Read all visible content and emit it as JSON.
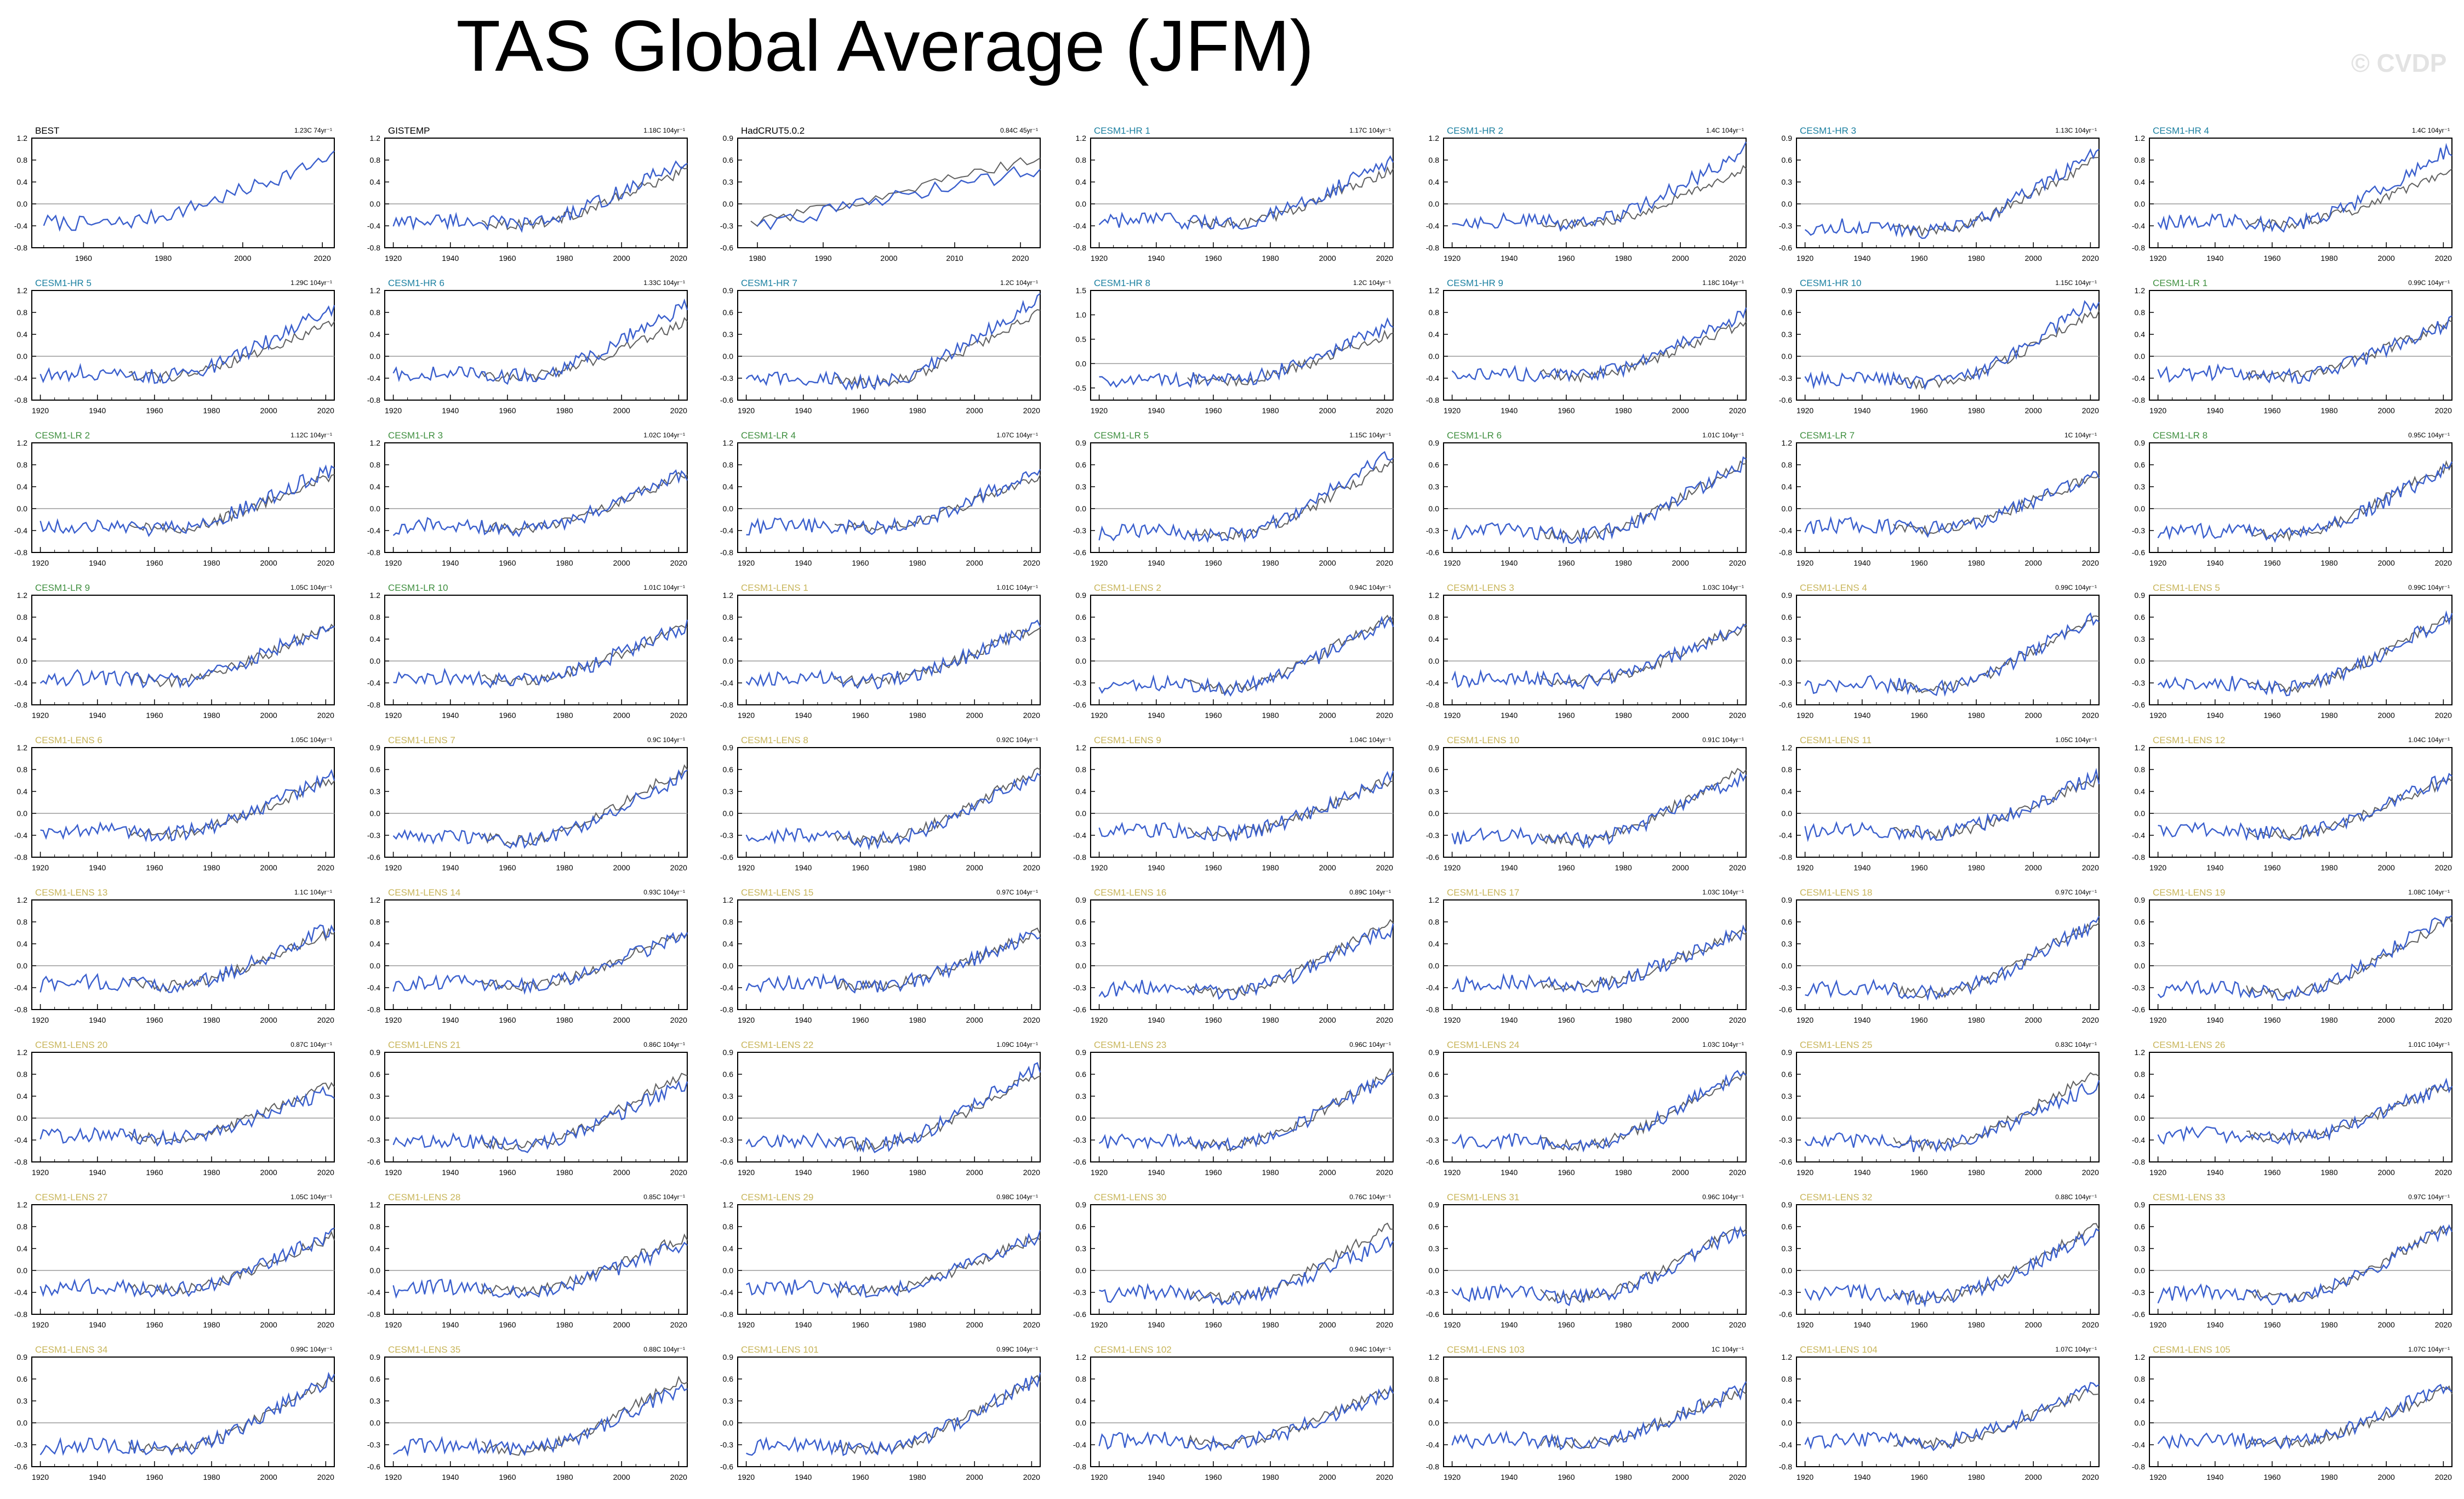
{
  "title": "TAS Global Average (JFM)",
  "watermark": "© CVDP",
  "colors": {
    "model": "#3a5fcd",
    "obs": "#606060",
    "ref": "#9a9a9a",
    "obs_title": "#000000",
    "hr_title": "#1a7fa0",
    "lr_title": "#3f8f3f",
    "lens_title": "#c8b55a"
  },
  "chart_data": {
    "type": "line",
    "xlabel": "",
    "ylabel": "",
    "panels": [
      {
        "name": "BEST",
        "group": "obs",
        "trend": "1.23C 74yr⁻¹",
        "xlim": [
          1947,
          2023
        ],
        "xticks": [
          1960,
          1980,
          2000,
          2020
        ],
        "yticks": [
          "1.2",
          "0.8",
          "0.4",
          "0.0",
          "-0.4",
          "-0.8"
        ],
        "ylim": [
          -0.8,
          1.2
        ]
      },
      {
        "name": "GISTEMP",
        "group": "obs",
        "trend": "1.18C 104yr⁻¹",
        "xlim": [
          1917,
          2023
        ],
        "xticks": [
          1920,
          1940,
          1960,
          1980,
          2000,
          2020
        ],
        "yticks": [
          "1.2",
          "0.8",
          "0.4",
          "0.0",
          "-0.4",
          "-0.8"
        ],
        "ylim": [
          -0.8,
          1.2
        ]
      },
      {
        "name": "HadCRUT5.0.2",
        "group": "obs",
        "trend": "0.84C 45yr⁻¹",
        "xlim": [
          1977,
          2023
        ],
        "xticks": [
          1980,
          1990,
          2000,
          2010,
          2020
        ],
        "yticks": [
          "0.9",
          "0.6",
          "0.3",
          "0.0",
          "-0.3",
          "-0.6"
        ],
        "ylim": [
          -0.6,
          0.9
        ]
      },
      {
        "name": "CESM1-HR 1",
        "group": "hr",
        "trend": "1.17C 104yr⁻¹",
        "yticks": [
          "1.2",
          "0.8",
          "0.4",
          "0.0",
          "-0.4",
          "-0.8"
        ],
        "ylim": [
          -0.8,
          1.2
        ]
      },
      {
        "name": "CESM1-HR 2",
        "group": "hr",
        "trend": "1.4C 104yr⁻¹",
        "yticks": [
          "1.2",
          "0.8",
          "0.4",
          "0.0",
          "-0.4",
          "-0.8"
        ],
        "ylim": [
          -0.8,
          1.2
        ]
      },
      {
        "name": "CESM1-HR 3",
        "group": "hr",
        "trend": "1.13C 104yr⁻¹",
        "yticks": [
          "0.9",
          "0.6",
          "0.3",
          "0.0",
          "-0.3",
          "-0.6"
        ],
        "ylim": [
          -0.6,
          0.9
        ]
      },
      {
        "name": "CESM1-HR 4",
        "group": "hr",
        "trend": "1.4C 104yr⁻¹",
        "yticks": [
          "1.2",
          "0.8",
          "0.4",
          "0.0",
          "-0.4",
          "-0.8"
        ],
        "ylim": [
          -0.8,
          1.2
        ]
      },
      {
        "name": "CESM1-HR 5",
        "group": "hr",
        "trend": "1.29C 104yr⁻¹",
        "yticks": [
          "1.2",
          "0.8",
          "0.4",
          "0.0",
          "-0.4",
          "-0.8"
        ],
        "ylim": [
          -0.8,
          1.2
        ]
      },
      {
        "name": "CESM1-HR 6",
        "group": "hr",
        "trend": "1.33C 104yr⁻¹",
        "yticks": [
          "1.2",
          "0.8",
          "0.4",
          "0.0",
          "-0.4",
          "-0.8"
        ],
        "ylim": [
          -0.8,
          1.2
        ]
      },
      {
        "name": "CESM1-HR 7",
        "group": "hr",
        "trend": "1.2C 104yr⁻¹",
        "yticks": [
          "0.9",
          "0.6",
          "0.3",
          "0.0",
          "-0.3",
          "-0.6"
        ],
        "ylim": [
          -0.6,
          0.9
        ]
      },
      {
        "name": "CESM1-HR 8",
        "group": "hr",
        "trend": "1.2C 104yr⁻¹",
        "yticks": [
          "1.5",
          "1.0",
          "0.5",
          "0.0",
          "-0.5"
        ],
        "ylim": [
          -0.75,
          1.5
        ]
      },
      {
        "name": "CESM1-HR 9",
        "group": "hr",
        "trend": "1.18C 104yr⁻¹",
        "yticks": [
          "1.2",
          "0.8",
          "0.4",
          "0.0",
          "-0.4",
          "-0.8"
        ],
        "ylim": [
          -0.8,
          1.2
        ]
      },
      {
        "name": "CESM1-HR 10",
        "group": "hr",
        "trend": "1.15C 104yr⁻¹",
        "yticks": [
          "0.9",
          "0.6",
          "0.3",
          "0.0",
          "-0.3",
          "-0.6"
        ],
        "ylim": [
          -0.6,
          0.9
        ]
      },
      {
        "name": "CESM1-LR 1",
        "group": "lr",
        "trend": "0.99C 104yr⁻¹",
        "yticks": [
          "1.2",
          "0.8",
          "0.4",
          "0.0",
          "-0.4",
          "-0.8"
        ],
        "ylim": [
          -0.8,
          1.2
        ]
      },
      {
        "name": "CESM1-LR 2",
        "group": "lr",
        "trend": "1.12C 104yr⁻¹",
        "yticks": [
          "1.2",
          "0.8",
          "0.4",
          "0.0",
          "-0.4",
          "-0.8"
        ],
        "ylim": [
          -0.8,
          1.2
        ]
      },
      {
        "name": "CESM1-LR 3",
        "group": "lr",
        "trend": "1.02C 104yr⁻¹",
        "yticks": [
          "1.2",
          "0.8",
          "0.4",
          "0.0",
          "-0.4",
          "-0.8"
        ],
        "ylim": [
          -0.8,
          1.2
        ]
      },
      {
        "name": "CESM1-LR 4",
        "group": "lr",
        "trend": "1.07C 104yr⁻¹",
        "yticks": [
          "1.2",
          "0.8",
          "0.4",
          "0.0",
          "-0.4",
          "-0.8"
        ],
        "ylim": [
          -0.8,
          1.2
        ]
      },
      {
        "name": "CESM1-LR 5",
        "group": "lr",
        "trend": "1.15C 104yr⁻¹",
        "yticks": [
          "0.9",
          "0.6",
          "0.3",
          "0.0",
          "-0.3",
          "-0.6"
        ],
        "ylim": [
          -0.6,
          0.9
        ]
      },
      {
        "name": "CESM1-LR 6",
        "group": "lr",
        "trend": "1.01C 104yr⁻¹",
        "yticks": [
          "0.9",
          "0.6",
          "0.3",
          "0.0",
          "-0.3",
          "-0.6"
        ],
        "ylim": [
          -0.6,
          0.9
        ]
      },
      {
        "name": "CESM1-LR 7",
        "group": "lr",
        "trend": "1C 104yr⁻¹",
        "yticks": [
          "1.2",
          "0.8",
          "0.4",
          "0.0",
          "-0.4",
          "-0.8"
        ],
        "ylim": [
          -0.8,
          1.2
        ]
      },
      {
        "name": "CESM1-LR 8",
        "group": "lr",
        "trend": "0.95C 104yr⁻¹",
        "yticks": [
          "0.9",
          "0.6",
          "0.3",
          "0.0",
          "-0.3",
          "-0.6"
        ],
        "ylim": [
          -0.6,
          0.9
        ]
      },
      {
        "name": "CESM1-LR 9",
        "group": "lr",
        "trend": "1.05C 104yr⁻¹",
        "yticks": [
          "1.2",
          "0.8",
          "0.4",
          "0.0",
          "-0.4",
          "-0.8"
        ],
        "ylim": [
          -0.8,
          1.2
        ]
      },
      {
        "name": "CESM1-LR 10",
        "group": "lr",
        "trend": "1.01C 104yr⁻¹",
        "yticks": [
          "1.2",
          "0.8",
          "0.4",
          "0.0",
          "-0.4",
          "-0.8"
        ],
        "ylim": [
          -0.8,
          1.2
        ]
      },
      {
        "name": "CESM1-LENS 1",
        "group": "lens",
        "trend": "1.01C 104yr⁻¹",
        "yticks": [
          "1.2",
          "0.8",
          "0.4",
          "0.0",
          "-0.4",
          "-0.8"
        ],
        "ylim": [
          -0.8,
          1.2
        ]
      },
      {
        "name": "CESM1-LENS 2",
        "group": "lens",
        "trend": "0.94C 104yr⁻¹",
        "yticks": [
          "0.9",
          "0.6",
          "0.3",
          "0.0",
          "-0.3",
          "-0.6"
        ],
        "ylim": [
          -0.6,
          0.9
        ]
      },
      {
        "name": "CESM1-LENS 3",
        "group": "lens",
        "trend": "1.03C 104yr⁻¹",
        "yticks": [
          "1.2",
          "0.8",
          "0.4",
          "0.0",
          "-0.4",
          "-0.8"
        ],
        "ylim": [
          -0.8,
          1.2
        ]
      },
      {
        "name": "CESM1-LENS 4",
        "group": "lens",
        "trend": "0.99C 104yr⁻¹",
        "yticks": [
          "0.9",
          "0.6",
          "0.3",
          "0.0",
          "-0.3",
          "-0.6"
        ],
        "ylim": [
          -0.6,
          0.9
        ]
      },
      {
        "name": "CESM1-LENS 5",
        "group": "lens",
        "trend": "0.99C 104yr⁻¹",
        "yticks": [
          "0.9",
          "0.6",
          "0.3",
          "0.0",
          "-0.3",
          "-0.6"
        ],
        "ylim": [
          -0.6,
          0.9
        ]
      },
      {
        "name": "CESM1-LENS 6",
        "group": "lens",
        "trend": "1.05C 104yr⁻¹",
        "yticks": [
          "1.2",
          "0.8",
          "0.4",
          "0.0",
          "-0.4",
          "-0.8"
        ],
        "ylim": [
          -0.8,
          1.2
        ]
      },
      {
        "name": "CESM1-LENS 7",
        "group": "lens",
        "trend": "0.9C 104yr⁻¹",
        "yticks": [
          "0.9",
          "0.6",
          "0.3",
          "0.0",
          "-0.3",
          "-0.6"
        ],
        "ylim": [
          -0.6,
          0.9
        ]
      },
      {
        "name": "CESM1-LENS 8",
        "group": "lens",
        "trend": "0.92C 104yr⁻¹",
        "yticks": [
          "0.9",
          "0.6",
          "0.3",
          "0.0",
          "-0.3",
          "-0.6"
        ],
        "ylim": [
          -0.6,
          0.9
        ]
      },
      {
        "name": "CESM1-LENS 9",
        "group": "lens",
        "trend": "1.04C 104yr⁻¹",
        "yticks": [
          "1.2",
          "0.8",
          "0.4",
          "0.0",
          "-0.4",
          "-0.8"
        ],
        "ylim": [
          -0.8,
          1.2
        ]
      },
      {
        "name": "CESM1-LENS 10",
        "group": "lens",
        "trend": "0.91C 104yr⁻¹",
        "yticks": [
          "0.9",
          "0.6",
          "0.3",
          "0.0",
          "-0.3",
          "-0.6"
        ],
        "ylim": [
          -0.6,
          0.9
        ]
      },
      {
        "name": "CESM1-LENS 11",
        "group": "lens",
        "trend": "1.05C 104yr⁻¹",
        "yticks": [
          "1.2",
          "0.8",
          "0.4",
          "0.0",
          "-0.4",
          "-0.8"
        ],
        "ylim": [
          -0.8,
          1.2
        ]
      },
      {
        "name": "CESM1-LENS 12",
        "group": "lens",
        "trend": "1.04C 104yr⁻¹",
        "yticks": [
          "1.2",
          "0.8",
          "0.4",
          "0.0",
          "-0.4",
          "-0.8"
        ],
        "ylim": [
          -0.8,
          1.2
        ]
      },
      {
        "name": "CESM1-LENS 13",
        "group": "lens",
        "trend": "1.1C 104yr⁻¹",
        "yticks": [
          "1.2",
          "0.8",
          "0.4",
          "0.0",
          "-0.4",
          "-0.8"
        ],
        "ylim": [
          -0.8,
          1.2
        ]
      },
      {
        "name": "CESM1-LENS 14",
        "group": "lens",
        "trend": "0.93C 104yr⁻¹",
        "yticks": [
          "1.2",
          "0.8",
          "0.4",
          "0.0",
          "-0.4",
          "-0.8"
        ],
        "ylim": [
          -0.8,
          1.2
        ]
      },
      {
        "name": "CESM1-LENS 15",
        "group": "lens",
        "trend": "0.97C 104yr⁻¹",
        "yticks": [
          "1.2",
          "0.8",
          "0.4",
          "0.0",
          "-0.4",
          "-0.8"
        ],
        "ylim": [
          -0.8,
          1.2
        ]
      },
      {
        "name": "CESM1-LENS 16",
        "group": "lens",
        "trend": "0.89C 104yr⁻¹",
        "yticks": [
          "0.9",
          "0.6",
          "0.3",
          "0.0",
          "-0.3",
          "-0.6"
        ],
        "ylim": [
          -0.6,
          0.9
        ]
      },
      {
        "name": "CESM1-LENS 17",
        "group": "lens",
        "trend": "1.03C 104yr⁻¹",
        "yticks": [
          "1.2",
          "0.8",
          "0.4",
          "0.0",
          "-0.4",
          "-0.8"
        ],
        "ylim": [
          -0.8,
          1.2
        ]
      },
      {
        "name": "CESM1-LENS 18",
        "group": "lens",
        "trend": "0.97C 104yr⁻¹",
        "yticks": [
          "0.9",
          "0.6",
          "0.3",
          "0.0",
          "-0.3",
          "-0.6"
        ],
        "ylim": [
          -0.6,
          0.9
        ]
      },
      {
        "name": "CESM1-LENS 19",
        "group": "lens",
        "trend": "1.08C 104yr⁻¹",
        "yticks": [
          "0.9",
          "0.6",
          "0.3",
          "0.0",
          "-0.3",
          "-0.6"
        ],
        "ylim": [
          -0.6,
          0.9
        ]
      },
      {
        "name": "CESM1-LENS 20",
        "group": "lens",
        "trend": "0.87C 104yr⁻¹",
        "yticks": [
          "1.2",
          "0.8",
          "0.4",
          "0.0",
          "-0.4",
          "-0.8"
        ],
        "ylim": [
          -0.8,
          1.2
        ]
      },
      {
        "name": "CESM1-LENS 21",
        "group": "lens",
        "trend": "0.86C 104yr⁻¹",
        "yticks": [
          "0.9",
          "0.6",
          "0.3",
          "0.0",
          "-0.3",
          "-0.6"
        ],
        "ylim": [
          -0.6,
          0.9
        ]
      },
      {
        "name": "CESM1-LENS 22",
        "group": "lens",
        "trend": "1.09C 104yr⁻¹",
        "yticks": [
          "0.9",
          "0.6",
          "0.3",
          "0.0",
          "-0.3",
          "-0.6"
        ],
        "ylim": [
          -0.6,
          0.9
        ]
      },
      {
        "name": "CESM1-LENS 23",
        "group": "lens",
        "trend": "0.96C 104yr⁻¹",
        "yticks": [
          "0.9",
          "0.6",
          "0.3",
          "0.0",
          "-0.3",
          "-0.6"
        ],
        "ylim": [
          -0.6,
          0.9
        ]
      },
      {
        "name": "CESM1-LENS 24",
        "group": "lens",
        "trend": "1.03C 104yr⁻¹",
        "yticks": [
          "0.9",
          "0.6",
          "0.3",
          "0.0",
          "-0.3",
          "-0.6"
        ],
        "ylim": [
          -0.6,
          0.9
        ]
      },
      {
        "name": "CESM1-LENS 25",
        "group": "lens",
        "trend": "0.83C 104yr⁻¹",
        "yticks": [
          "0.9",
          "0.6",
          "0.3",
          "0.0",
          "-0.3",
          "-0.6"
        ],
        "ylim": [
          -0.6,
          0.9
        ]
      },
      {
        "name": "CESM1-LENS 26",
        "group": "lens",
        "trend": "1.01C 104yr⁻¹",
        "yticks": [
          "1.2",
          "0.8",
          "0.4",
          "0.0",
          "-0.4",
          "-0.8"
        ],
        "ylim": [
          -0.8,
          1.2
        ]
      },
      {
        "name": "CESM1-LENS 27",
        "group": "lens",
        "trend": "1.05C 104yr⁻¹",
        "yticks": [
          "1.2",
          "0.8",
          "0.4",
          "0.0",
          "-0.4",
          "-0.8"
        ],
        "ylim": [
          -0.8,
          1.2
        ]
      },
      {
        "name": "CESM1-LENS 28",
        "group": "lens",
        "trend": "0.85C 104yr⁻¹",
        "yticks": [
          "1.2",
          "0.8",
          "0.4",
          "0.0",
          "-0.4",
          "-0.8"
        ],
        "ylim": [
          -0.8,
          1.2
        ]
      },
      {
        "name": "CESM1-LENS 29",
        "group": "lens",
        "trend": "0.98C 104yr⁻¹",
        "yticks": [
          "1.2",
          "0.8",
          "0.4",
          "0.0",
          "-0.4",
          "-0.8"
        ],
        "ylim": [
          -0.8,
          1.2
        ]
      },
      {
        "name": "CESM1-LENS 30",
        "group": "lens",
        "trend": "0.76C 104yr⁻¹",
        "yticks": [
          "0.9",
          "0.6",
          "0.3",
          "0.0",
          "-0.3",
          "-0.6"
        ],
        "ylim": [
          -0.6,
          0.9
        ]
      },
      {
        "name": "CESM1-LENS 31",
        "group": "lens",
        "trend": "0.96C 104yr⁻¹",
        "yticks": [
          "0.9",
          "0.6",
          "0.3",
          "0.0",
          "-0.3",
          "-0.6"
        ],
        "ylim": [
          -0.6,
          0.9
        ]
      },
      {
        "name": "CESM1-LENS 32",
        "group": "lens",
        "trend": "0.88C 104yr⁻¹",
        "yticks": [
          "0.9",
          "0.6",
          "0.3",
          "0.0",
          "-0.3",
          "-0.6"
        ],
        "ylim": [
          -0.6,
          0.9
        ]
      },
      {
        "name": "CESM1-LENS 33",
        "group": "lens",
        "trend": "0.97C 104yr⁻¹",
        "yticks": [
          "0.9",
          "0.6",
          "0.3",
          "0.0",
          "-0.3",
          "-0.6"
        ],
        "ylim": [
          -0.6,
          0.9
        ]
      },
      {
        "name": "CESM1-LENS 34",
        "group": "lens",
        "trend": "0.99C 104yr⁻¹",
        "yticks": [
          "0.9",
          "0.6",
          "0.3",
          "0.0",
          "-0.3",
          "-0.6"
        ],
        "ylim": [
          -0.6,
          0.9
        ]
      },
      {
        "name": "CESM1-LENS 35",
        "group": "lens",
        "trend": "0.88C 104yr⁻¹",
        "yticks": [
          "0.9",
          "0.6",
          "0.3",
          "0.0",
          "-0.3",
          "-0.6"
        ],
        "ylim": [
          -0.6,
          0.9
        ]
      },
      {
        "name": "CESM1-LENS 101",
        "group": "lens",
        "trend": "0.99C 104yr⁻¹",
        "yticks": [
          "0.9",
          "0.6",
          "0.3",
          "0.0",
          "-0.3",
          "-0.6"
        ],
        "ylim": [
          -0.6,
          0.9
        ]
      },
      {
        "name": "CESM1-LENS 102",
        "group": "lens",
        "trend": "0.94C 104yr⁻¹",
        "yticks": [
          "1.2",
          "0.8",
          "0.4",
          "0.0",
          "-0.4",
          "-0.8"
        ],
        "ylim": [
          -0.8,
          1.2
        ]
      },
      {
        "name": "CESM1-LENS 103",
        "group": "lens",
        "trend": "1C 104yr⁻¹",
        "yticks": [
          "1.2",
          "0.8",
          "0.4",
          "0.0",
          "-0.4",
          "-0.8"
        ],
        "ylim": [
          -0.8,
          1.2
        ]
      },
      {
        "name": "CESM1-LENS 104",
        "group": "lens",
        "trend": "1.07C 104yr⁻¹",
        "yticks": [
          "1.2",
          "0.8",
          "0.4",
          "0.0",
          "-0.4",
          "-0.8"
        ],
        "ylim": [
          -0.8,
          1.2
        ]
      },
      {
        "name": "CESM1-LENS 105",
        "group": "lens",
        "trend": "1.07C 104yr⁻¹",
        "yticks": [
          "1.2",
          "0.8",
          "0.4",
          "0.0",
          "-0.4",
          "-0.8"
        ],
        "ylim": [
          -0.8,
          1.2
        ]
      }
    ],
    "default_xlim": [
      1917,
      2023
    ],
    "default_xticks": [
      1920,
      1940,
      1960,
      1980,
      2000,
      2020
    ]
  }
}
